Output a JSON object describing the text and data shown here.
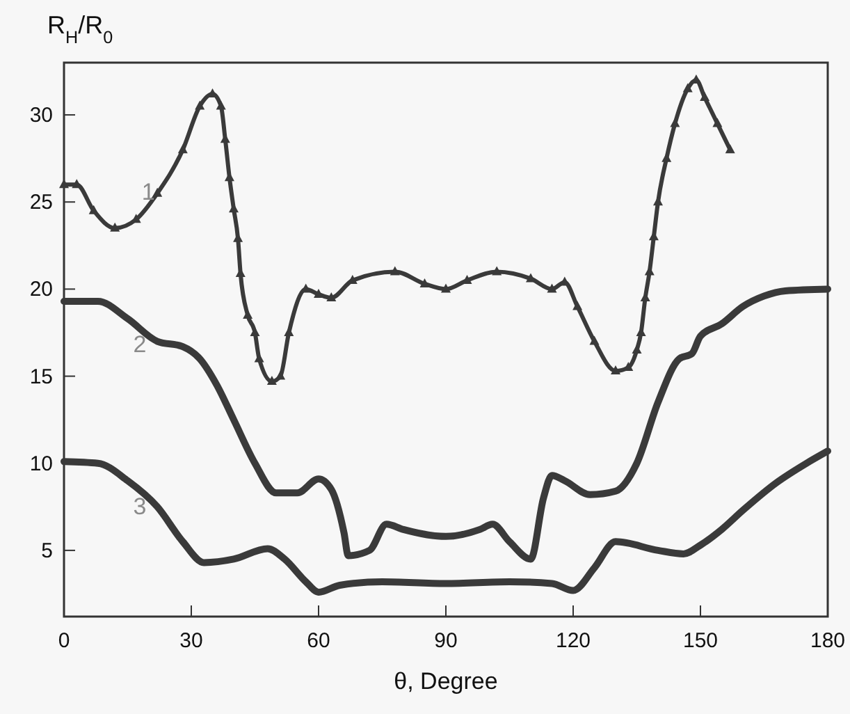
{
  "chart_data": {
    "type": "line",
    "xlabel": "θ, Degree",
    "ylabel": "R$_{H}$/R$_{0}$",
    "xlim": [
      0,
      180
    ],
    "ylim": [
      1.2,
      33
    ],
    "xticks": [
      0,
      30,
      60,
      90,
      120,
      150,
      180
    ],
    "yticks": [
      5,
      10,
      15,
      20,
      25,
      30
    ],
    "grid": false,
    "line_style": "solid",
    "series": [
      {
        "name": "1",
        "color": "#3a3a3a",
        "marker": "triangle",
        "x": [
          0,
          3,
          7,
          12,
          17,
          22,
          28,
          32,
          35,
          37,
          38,
          39,
          40,
          41,
          41.6,
          43.3,
          45,
          46,
          49,
          51,
          53,
          57,
          60,
          63,
          68,
          78,
          85,
          90,
          95,
          102,
          110,
          115,
          118,
          121,
          125,
          130,
          133,
          135,
          136,
          137,
          138,
          139,
          140,
          142,
          144,
          147,
          149,
          151,
          154,
          157
        ],
        "values": [
          26,
          26,
          24.5,
          23.5,
          24,
          25.5,
          28,
          30.5,
          31.2,
          30.5,
          28.6,
          26.4,
          24.6,
          22.9,
          20.9,
          18.5,
          17.5,
          16,
          14.7,
          15,
          17.5,
          20,
          19.7,
          19.5,
          20.5,
          21,
          20.3,
          20,
          20.5,
          21,
          20.6,
          20,
          20.4,
          19,
          17,
          15.3,
          15.5,
          16.5,
          17.5,
          19.5,
          21,
          23,
          25,
          27.5,
          29.5,
          31.5,
          32,
          31,
          29.5,
          28
        ]
      },
      {
        "name": "2",
        "color": "#3a3a3a",
        "marker": "none",
        "x": [
          0,
          8,
          15,
          22,
          28,
          32,
          36,
          40,
          45,
          50,
          55,
          60,
          63,
          66,
          67,
          72,
          76,
          80,
          90,
          98,
          101,
          105,
          110,
          113,
          115,
          118,
          124,
          130,
          135,
          140,
          145,
          148,
          150,
          155,
          160,
          165,
          170,
          180
        ],
        "values": [
          19.3,
          19.3,
          18.3,
          17,
          16.7,
          16,
          14.5,
          12.5,
          10,
          8.3,
          8.3,
          9.1,
          8.5,
          6,
          4.7,
          5,
          6.5,
          6.2,
          5.8,
          6.2,
          6.5,
          5.5,
          4.5,
          8,
          9.3,
          9,
          8.2,
          8.4,
          10,
          13.5,
          16,
          16.3,
          17.3,
          18,
          19,
          19.6,
          19.9,
          20
        ]
      },
      {
        "name": "3",
        "color": "#3a3a3a",
        "marker": "none",
        "x": [
          0,
          8,
          15,
          22,
          28,
          33,
          40,
          48,
          52,
          57,
          60,
          65,
          75,
          90,
          105,
          115,
          120,
          125,
          130,
          140,
          146,
          150,
          155,
          160,
          168,
          175,
          180
        ],
        "values": [
          10.1,
          10,
          9,
          7.5,
          5.5,
          4.3,
          4.5,
          5.1,
          4.5,
          3.2,
          2.6,
          3,
          3.2,
          3.1,
          3.2,
          3.1,
          2.7,
          4,
          5.5,
          5,
          4.8,
          5.3,
          6.2,
          7.3,
          8.9,
          10,
          10.7
        ]
      }
    ]
  }
}
